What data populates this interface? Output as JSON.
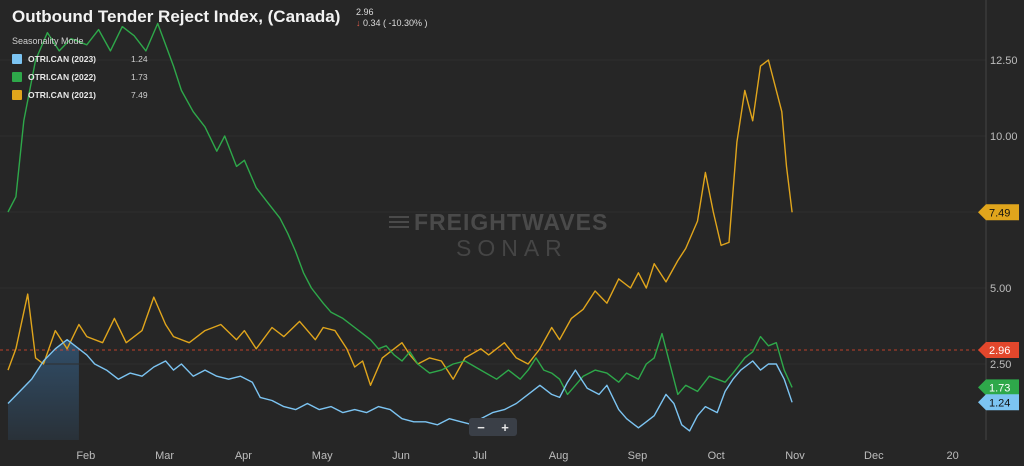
{
  "title": "Outbound Tender Reject Index, (Canada)",
  "last": {
    "value": "2.96",
    "change": "0.34 ( -10.30% )"
  },
  "mode": "Seasonality Mode",
  "legend": [
    {
      "name": "OTRI.CAN (2023)",
      "value": "1.24",
      "color": "#7cc4f2"
    },
    {
      "name": "OTRI.CAN (2022)",
      "value": "1.73",
      "color": "#2ea84a"
    },
    {
      "name": "OTRI.CAN (2021)",
      "value": "7.49",
      "color": "#e0a51c"
    }
  ],
  "watermark": {
    "line1": "FREIGHTWAVES",
    "line2": "SONAR"
  },
  "zoom": {
    "minus": "−",
    "plus": "+"
  },
  "chart_data": {
    "type": "line",
    "x_axis_labels": [
      "Feb",
      "Mar",
      "Apr",
      "May",
      "Jun",
      "Jul",
      "Aug",
      "Sep",
      "Oct",
      "Nov",
      "Dec",
      "20"
    ],
    "y_ticks": [
      2.5,
      5.0,
      7.5,
      10.0,
      12.5
    ],
    "y_tick_labels": [
      "2.50",
      "5.00",
      "7.50",
      "10.00",
      "12.50"
    ],
    "ylim": [
      0,
      14.3
    ],
    "reference_line": {
      "value": 2.96,
      "label": "2.96",
      "color": "#e2472c"
    },
    "end_labels": [
      {
        "value": 7.49,
        "label": "7.49",
        "color": "#e0a51c"
      },
      {
        "value": 1.73,
        "label": "1.73",
        "color": "#2ea84a"
      },
      {
        "value": 1.24,
        "label": "1.24",
        "color": "#7cc4f2"
      }
    ],
    "series": [
      {
        "name": "OTRI.CAN (2021)",
        "color": "#e0a51c",
        "points": [
          [
            0,
            2.3
          ],
          [
            0.1,
            3.0
          ],
          [
            0.25,
            4.8
          ],
          [
            0.35,
            2.7
          ],
          [
            0.45,
            2.5
          ],
          [
            0.6,
            3.6
          ],
          [
            0.75,
            3.0
          ],
          [
            0.9,
            3.8
          ],
          [
            1.0,
            3.4
          ],
          [
            1.2,
            3.2
          ],
          [
            1.35,
            4.0
          ],
          [
            1.5,
            3.2
          ],
          [
            1.7,
            3.6
          ],
          [
            1.85,
            4.7
          ],
          [
            2.0,
            3.8
          ],
          [
            2.1,
            3.4
          ],
          [
            2.3,
            3.2
          ],
          [
            2.5,
            3.6
          ],
          [
            2.7,
            3.8
          ],
          [
            2.9,
            3.3
          ],
          [
            3.0,
            3.6
          ],
          [
            3.15,
            3.0
          ],
          [
            3.35,
            3.7
          ],
          [
            3.5,
            3.4
          ],
          [
            3.7,
            3.9
          ],
          [
            3.9,
            3.3
          ],
          [
            4.0,
            3.7
          ],
          [
            4.15,
            3.6
          ],
          [
            4.3,
            3.0
          ],
          [
            4.4,
            2.4
          ],
          [
            4.5,
            2.6
          ],
          [
            4.6,
            1.8
          ],
          [
            4.75,
            2.7
          ],
          [
            4.9,
            3.0
          ],
          [
            5.0,
            3.2
          ],
          [
            5.1,
            2.8
          ],
          [
            5.2,
            2.5
          ],
          [
            5.35,
            2.7
          ],
          [
            5.5,
            2.6
          ],
          [
            5.65,
            2.0
          ],
          [
            5.8,
            2.7
          ],
          [
            6.0,
            3.0
          ],
          [
            6.1,
            2.8
          ],
          [
            6.3,
            3.2
          ],
          [
            6.45,
            2.7
          ],
          [
            6.6,
            2.5
          ],
          [
            6.75,
            3.0
          ],
          [
            6.9,
            3.7
          ],
          [
            7.0,
            3.3
          ],
          [
            7.15,
            4.0
          ],
          [
            7.3,
            4.3
          ],
          [
            7.45,
            4.9
          ],
          [
            7.6,
            4.5
          ],
          [
            7.75,
            5.3
          ],
          [
            7.9,
            5.0
          ],
          [
            8.0,
            5.5
          ],
          [
            8.1,
            5.0
          ],
          [
            8.2,
            5.8
          ],
          [
            8.35,
            5.2
          ],
          [
            8.5,
            5.9
          ],
          [
            8.6,
            6.3
          ],
          [
            8.75,
            7.2
          ],
          [
            8.85,
            8.8
          ],
          [
            8.95,
            7.5
          ],
          [
            9.05,
            6.4
          ],
          [
            9.15,
            6.5
          ],
          [
            9.25,
            9.8
          ],
          [
            9.35,
            11.5
          ],
          [
            9.45,
            10.5
          ],
          [
            9.55,
            12.3
          ],
          [
            9.65,
            12.5
          ],
          [
            9.75,
            11.5
          ],
          [
            9.82,
            10.8
          ],
          [
            9.88,
            9.0
          ],
          [
            9.95,
            7.49
          ]
        ]
      },
      {
        "name": "OTRI.CAN (2022)",
        "color": "#2ea84a",
        "points": [
          [
            0,
            7.5
          ],
          [
            0.1,
            8.0
          ],
          [
            0.2,
            10.5
          ],
          [
            0.35,
            12.5
          ],
          [
            0.5,
            13.4
          ],
          [
            0.65,
            12.8
          ],
          [
            0.8,
            13.2
          ],
          [
            1.0,
            13.0
          ],
          [
            1.15,
            13.5
          ],
          [
            1.3,
            12.8
          ],
          [
            1.45,
            13.6
          ],
          [
            1.6,
            13.3
          ],
          [
            1.75,
            12.8
          ],
          [
            1.9,
            13.7
          ],
          [
            2.0,
            13.0
          ],
          [
            2.1,
            12.3
          ],
          [
            2.2,
            11.5
          ],
          [
            2.35,
            10.8
          ],
          [
            2.5,
            10.3
          ],
          [
            2.65,
            9.5
          ],
          [
            2.75,
            10.0
          ],
          [
            2.9,
            9.0
          ],
          [
            3.0,
            9.2
          ],
          [
            3.15,
            8.3
          ],
          [
            3.3,
            7.8
          ],
          [
            3.45,
            7.3
          ],
          [
            3.55,
            6.8
          ],
          [
            3.65,
            6.2
          ],
          [
            3.75,
            5.5
          ],
          [
            3.85,
            5.0
          ],
          [
            4.0,
            4.5
          ],
          [
            4.1,
            4.2
          ],
          [
            4.25,
            4.0
          ],
          [
            4.4,
            3.7
          ],
          [
            4.5,
            3.5
          ],
          [
            4.6,
            3.3
          ],
          [
            4.7,
            3.0
          ],
          [
            4.8,
            3.1
          ],
          [
            4.9,
            2.8
          ],
          [
            5.0,
            2.6
          ],
          [
            5.1,
            2.9
          ],
          [
            5.2,
            2.5
          ],
          [
            5.35,
            2.2
          ],
          [
            5.5,
            2.3
          ],
          [
            5.65,
            2.5
          ],
          [
            5.8,
            2.6
          ],
          [
            6.0,
            2.3
          ],
          [
            6.2,
            2.0
          ],
          [
            6.35,
            2.3
          ],
          [
            6.5,
            2.0
          ],
          [
            6.6,
            2.3
          ],
          [
            6.7,
            2.7
          ],
          [
            6.8,
            2.3
          ],
          [
            6.9,
            2.2
          ],
          [
            7.0,
            2.0
          ],
          [
            7.1,
            1.5
          ],
          [
            7.2,
            1.8
          ],
          [
            7.3,
            2.1
          ],
          [
            7.45,
            2.3
          ],
          [
            7.6,
            2.2
          ],
          [
            7.75,
            1.9
          ],
          [
            7.85,
            2.2
          ],
          [
            8.0,
            2.0
          ],
          [
            8.1,
            2.5
          ],
          [
            8.2,
            2.7
          ],
          [
            8.3,
            3.5
          ],
          [
            8.4,
            2.5
          ],
          [
            8.5,
            1.5
          ],
          [
            8.6,
            1.8
          ],
          [
            8.75,
            1.6
          ],
          [
            8.9,
            2.1
          ],
          [
            9.0,
            2.0
          ],
          [
            9.1,
            1.9
          ],
          [
            9.2,
            2.2
          ],
          [
            9.35,
            2.7
          ],
          [
            9.45,
            2.9
          ],
          [
            9.55,
            3.4
          ],
          [
            9.65,
            3.1
          ],
          [
            9.75,
            3.2
          ],
          [
            9.85,
            2.3
          ],
          [
            9.95,
            1.73
          ]
        ]
      },
      {
        "name": "OTRI.CAN (2023)",
        "color": "#7cc4f2",
        "points": [
          [
            0,
            1.2
          ],
          [
            0.15,
            1.6
          ],
          [
            0.3,
            2.0
          ],
          [
            0.45,
            2.6
          ],
          [
            0.6,
            3.0
          ],
          [
            0.75,
            3.3
          ],
          [
            0.9,
            3.0
          ],
          [
            1.0,
            2.8
          ],
          [
            1.1,
            2.5
          ],
          [
            1.25,
            2.3
          ],
          [
            1.4,
            2.0
          ],
          [
            1.55,
            2.2
          ],
          [
            1.7,
            2.1
          ],
          [
            1.85,
            2.4
          ],
          [
            2.0,
            2.6
          ],
          [
            2.1,
            2.3
          ],
          [
            2.2,
            2.5
          ],
          [
            2.35,
            2.1
          ],
          [
            2.5,
            2.3
          ],
          [
            2.65,
            2.1
          ],
          [
            2.8,
            2.0
          ],
          [
            2.95,
            2.1
          ],
          [
            3.1,
            1.9
          ],
          [
            3.2,
            1.4
          ],
          [
            3.35,
            1.3
          ],
          [
            3.5,
            1.1
          ],
          [
            3.65,
            1.0
          ],
          [
            3.8,
            1.2
          ],
          [
            3.95,
            1.0
          ],
          [
            4.1,
            1.1
          ],
          [
            4.25,
            0.9
          ],
          [
            4.4,
            1.0
          ],
          [
            4.55,
            0.9
          ],
          [
            4.7,
            1.1
          ],
          [
            4.85,
            1.0
          ],
          [
            5.0,
            0.7
          ],
          [
            5.15,
            0.6
          ],
          [
            5.3,
            0.6
          ],
          [
            5.45,
            0.5
          ],
          [
            5.6,
            0.7
          ],
          [
            5.75,
            0.6
          ],
          [
            5.9,
            0.5
          ],
          [
            6.0,
            0.7
          ],
          [
            6.15,
            0.9
          ],
          [
            6.3,
            1.0
          ],
          [
            6.45,
            1.2
          ],
          [
            6.6,
            1.5
          ],
          [
            6.75,
            1.8
          ],
          [
            6.9,
            1.5
          ],
          [
            7.0,
            1.4
          ],
          [
            7.1,
            1.9
          ],
          [
            7.2,
            2.3
          ],
          [
            7.35,
            1.7
          ],
          [
            7.5,
            1.5
          ],
          [
            7.6,
            1.8
          ],
          [
            7.75,
            1.0
          ],
          [
            7.85,
            0.7
          ],
          [
            8.0,
            0.4
          ],
          [
            8.1,
            0.6
          ],
          [
            8.2,
            0.8
          ],
          [
            8.35,
            1.5
          ],
          [
            8.45,
            1.2
          ],
          [
            8.55,
            0.5
          ],
          [
            8.65,
            0.3
          ],
          [
            8.75,
            0.8
          ],
          [
            8.85,
            1.1
          ],
          [
            9.0,
            0.9
          ],
          [
            9.1,
            1.6
          ],
          [
            9.2,
            2.0
          ],
          [
            9.3,
            2.3
          ],
          [
            9.45,
            2.6
          ],
          [
            9.55,
            2.3
          ],
          [
            9.65,
            2.5
          ],
          [
            9.75,
            2.5
          ],
          [
            9.85,
            2.0
          ],
          [
            9.95,
            1.24
          ]
        ]
      }
    ]
  }
}
